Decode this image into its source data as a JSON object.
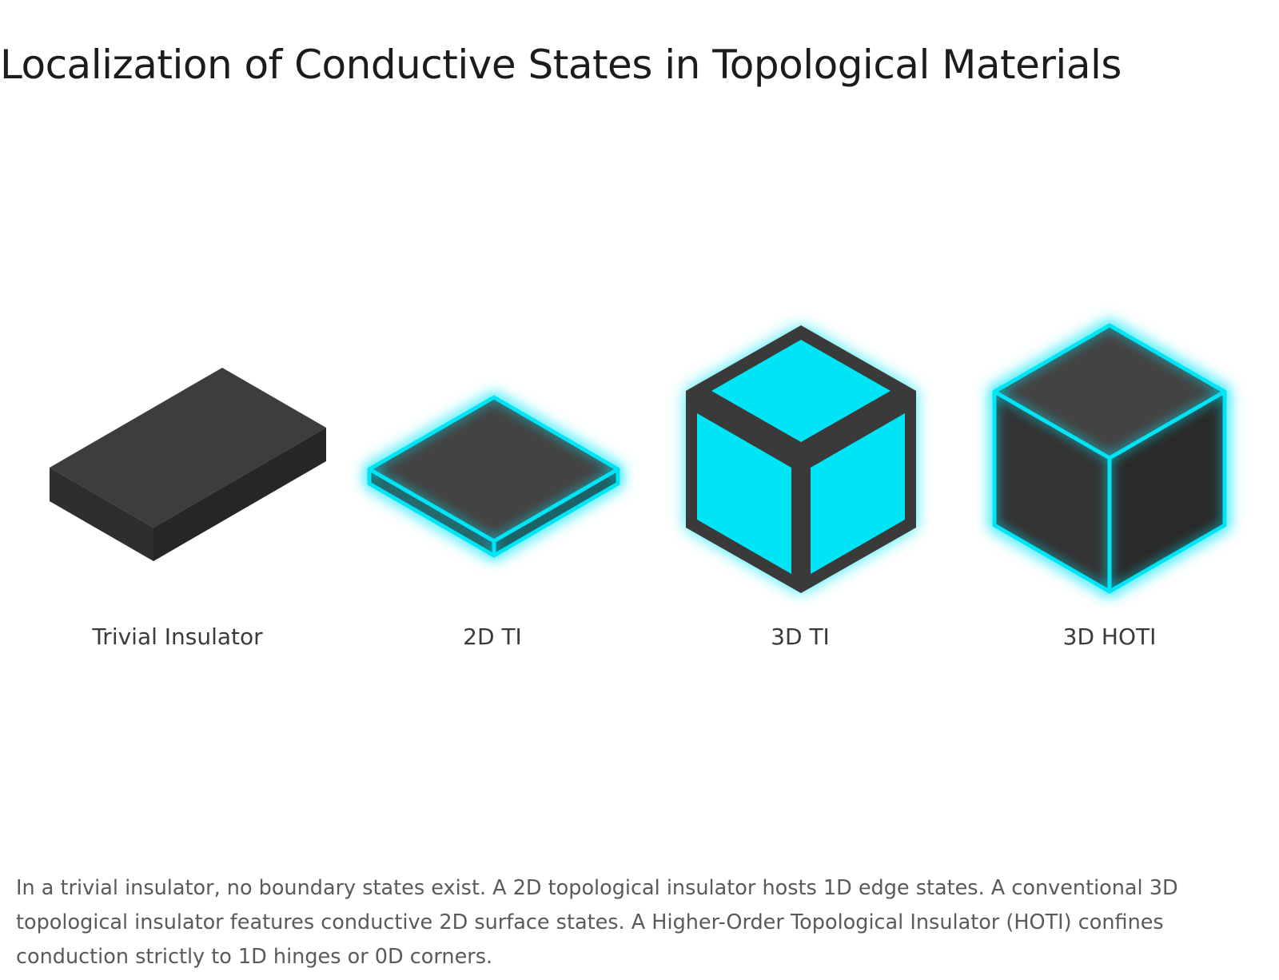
{
  "title": "Localization of Conductive States in Topological Materials",
  "items": [
    {
      "label": "Trivial Insulator",
      "conductive": "none"
    },
    {
      "label": "2D TI",
      "conductive": "edges"
    },
    {
      "label": "3D TI",
      "conductive": "surfaces"
    },
    {
      "label": "3D HOTI",
      "conductive": "hinges"
    }
  ],
  "caption": "In a trivial insulator, no boundary states exist. A 2D topological insulator hosts 1D edge states. A conventional 3D topological insulator features conductive 2D surface states. A Higher-Order Topological Insulator (HOTI) confines conduction strictly to 1D hinges or 0D corners.",
  "colors": {
    "conductive": "#00e5f5",
    "top_face": "#434343",
    "left_face": "#333333",
    "right_face": "#282828",
    "frame": "#3a3a3a"
  }
}
